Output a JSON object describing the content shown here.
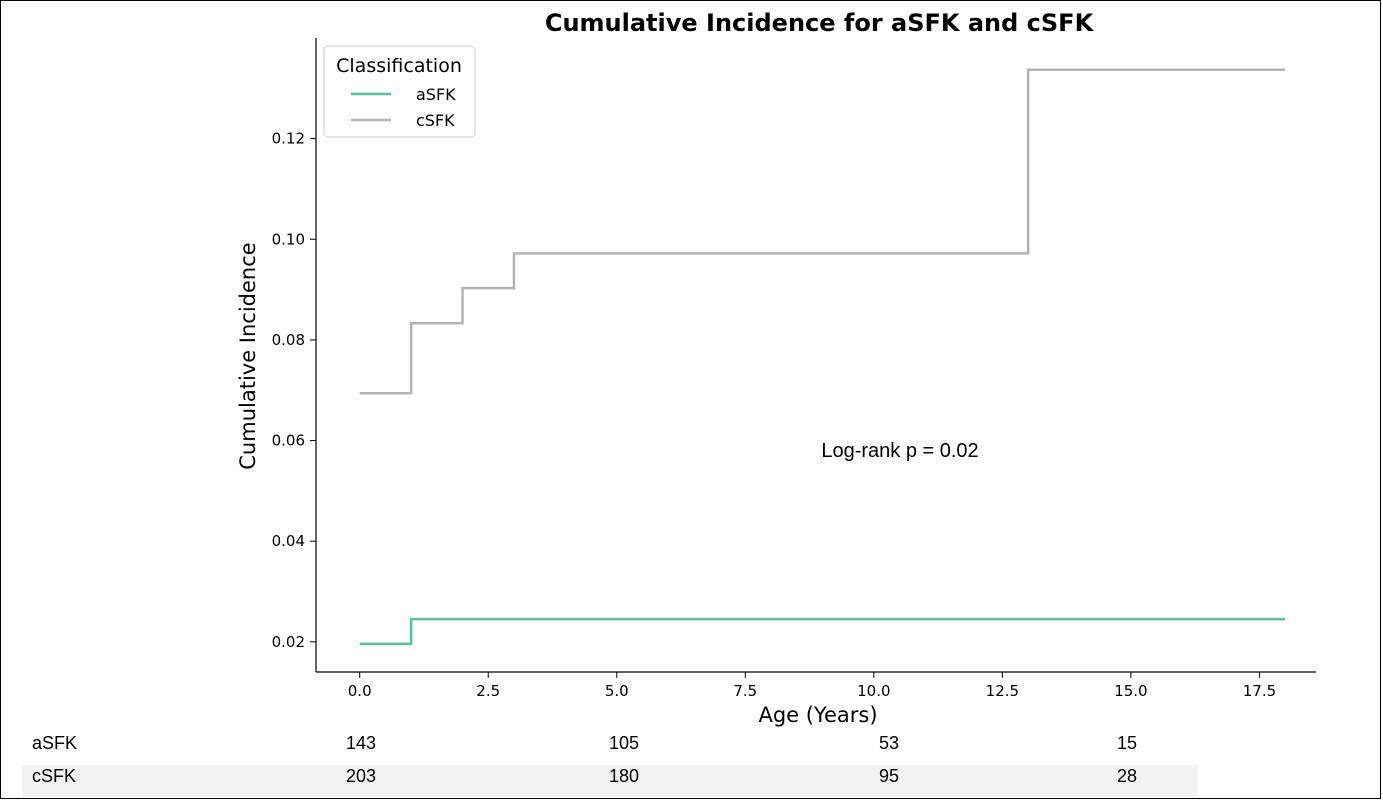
{
  "chart_data": {
    "type": "line",
    "step": true,
    "title": "Cumulative Incidence for aSFK and cSFK",
    "xlabel": "Age (Years)",
    "ylabel": "Cumulative Incidence",
    "xlim": [
      -0.85,
      18.6
    ],
    "ylim": [
      0.014,
      0.14
    ],
    "x_ticks": [
      0.0,
      2.5,
      5.0,
      7.5,
      10.0,
      12.5,
      15.0,
      17.5
    ],
    "x_tick_labels": [
      "0.0",
      "2.5",
      "5.0",
      "7.5",
      "10.0",
      "12.5",
      "15.0",
      "17.5"
    ],
    "y_ticks": [
      0.02,
      0.04,
      0.06,
      0.08,
      0.1,
      0.12
    ],
    "y_tick_labels": [
      "0.02",
      "0.04",
      "0.06",
      "0.08",
      "0.10",
      "0.12"
    ],
    "grid": false,
    "legend": {
      "title": "Classification",
      "position": "top-left"
    },
    "annotation": "Log-rank p = 0.02",
    "series": [
      {
        "name": "aSFK",
        "color": "#5dbf9a",
        "x": [
          0,
          1,
          18
        ],
        "y": [
          0.0196,
          0.0245,
          0.0245
        ]
      },
      {
        "name": "cSFK",
        "color": "#b3b3b3",
        "x": [
          0,
          1,
          2,
          3,
          13,
          18
        ],
        "y": [
          0.0694,
          0.0833,
          0.0903,
          0.0972,
          0.1337,
          0.1337
        ]
      }
    ]
  },
  "risk_table": {
    "rows": [
      {
        "label": "aSFK",
        "values": [
          "143",
          "105",
          "53",
          "15"
        ]
      },
      {
        "label": "cSFK",
        "values": [
          "203",
          "180",
          "95",
          "28"
        ]
      }
    ]
  }
}
